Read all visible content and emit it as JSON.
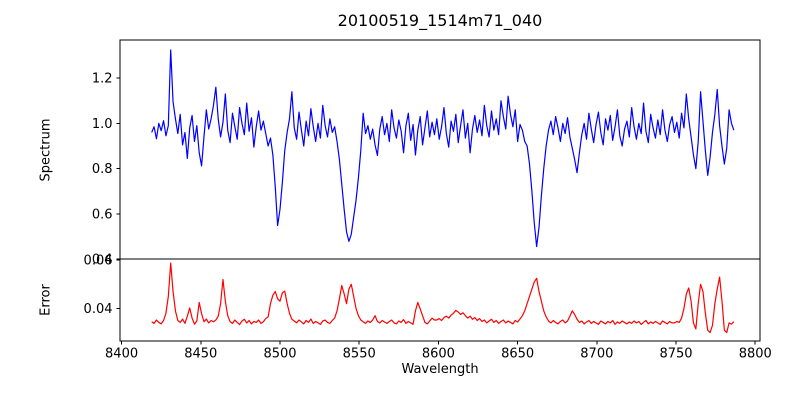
{
  "chart_data": {
    "type": "line",
    "title": "20100519_1514m71_040",
    "grid": false,
    "legend": null,
    "background": "#ffffff",
    "frame_color": "#000000",
    "text_color": "#000000",
    "x_axis": {
      "label": "Wavelength",
      "ticks": [
        8400,
        8450,
        8500,
        8550,
        8600,
        8650,
        8700,
        8750,
        8800
      ],
      "tick_labels": [
        "8400",
        "8450",
        "8500",
        "8550",
        "8600",
        "8650",
        "8700",
        "8750",
        "8800"
      ],
      "xlim": [
        8399,
        8803
      ]
    },
    "panels": [
      {
        "name": "spectrum",
        "ylabel": "Spectrum",
        "color": "#0000ff",
        "ylim": [
          0.4,
          1.369
        ],
        "yticks": [
          0.4,
          0.6,
          0.8,
          1.0,
          1.2
        ],
        "ytick_labels": [
          "0.4",
          "0.6",
          "0.8",
          "1.0",
          "1.2"
        ],
        "x_start": 8419,
        "x_step": 1.5,
        "values": [
          0.96,
          0.985,
          0.932,
          1.0,
          0.968,
          1.012,
          0.945,
          0.99,
          1.325,
          1.095,
          1.02,
          0.955,
          1.04,
          0.905,
          0.96,
          0.845,
          0.98,
          1.035,
          0.92,
          0.99,
          0.87,
          0.812,
          0.94,
          1.06,
          0.975,
          1.02,
          1.08,
          1.16,
          1.02,
          0.94,
          1.005,
          1.13,
          0.97,
          0.915,
          1.045,
          0.985,
          0.93,
          1.07,
          1.0,
          0.95,
          1.09,
          0.965,
          1.025,
          0.895,
          0.985,
          1.055,
          0.97,
          1.01,
          0.955,
          0.9,
          0.935,
          0.86,
          0.72,
          0.548,
          0.62,
          0.74,
          0.88,
          0.96,
          1.02,
          1.14,
          0.98,
          0.93,
          1.05,
          0.97,
          0.9,
          1.01,
          0.945,
          1.065,
          0.985,
          0.92,
          1.0,
          0.935,
          1.08,
          0.99,
          0.94,
          1.02,
          0.96,
          0.985,
          0.92,
          0.84,
          0.73,
          0.62,
          0.52,
          0.478,
          0.51,
          0.585,
          0.66,
          0.76,
          0.88,
          1.045,
          0.955,
          0.99,
          0.93,
          0.975,
          0.905,
          0.858,
          0.975,
          1.03,
          0.95,
          1.0,
          0.92,
          1.06,
          0.98,
          0.935,
          1.015,
          0.965,
          0.87,
          0.99,
          1.045,
          0.925,
          0.995,
          0.86,
          0.97,
          1.03,
          0.905,
          0.98,
          1.055,
          0.94,
          1.005,
          0.95,
          1.02,
          0.93,
          0.985,
          1.07,
          0.955,
          0.895,
          1.01,
          0.965,
          1.04,
          0.915,
          0.99,
          1.06,
          0.935,
          1.0,
          0.87,
          0.975,
          1.035,
          0.96,
          1.015,
          0.945,
          1.08,
          0.99,
          0.94,
          1.055,
          0.97,
          1.02,
          0.95,
          1.1,
          1.03,
          0.975,
          1.12,
          1.04,
          0.985,
          1.06,
          0.92,
          0.995,
          0.97,
          0.92,
          0.9,
          0.82,
          0.7,
          0.56,
          0.455,
          0.54,
          0.68,
          0.8,
          0.9,
          0.97,
          1.01,
          0.95,
          1.03,
          0.98,
          0.92,
          1.0,
          0.955,
          1.025,
          0.94,
          0.89,
          0.84,
          0.782,
          0.87,
          0.95,
          1.0,
          0.93,
          1.045,
          0.975,
          0.915,
          0.995,
          1.05,
          0.96,
          0.905,
          1.02,
          0.97,
          1.035,
          0.925,
          0.985,
          1.06,
          0.945,
          0.9,
          0.975,
          1.01,
          0.94,
          1.07,
          0.985,
          0.93,
          1.0,
          0.955,
          1.09,
          0.965,
          0.915,
          1.04,
          0.98,
          0.935,
          1.015,
          0.95,
          1.06,
          0.97,
          0.92,
          0.995,
          1.03,
          0.96,
          1.005,
          0.935,
          1.045,
          0.98,
          1.13,
          1.02,
          0.94,
          0.86,
          0.8,
          0.92,
          1.14,
          1.01,
          0.88,
          0.77,
          0.85,
          0.96,
          1.04,
          1.15,
          0.99,
          0.9,
          0.82,
          0.89,
          1.06,
          1.0,
          0.97
        ]
      },
      {
        "name": "error",
        "ylabel": "Error",
        "xlabel": "Wavelength",
        "color": "#ff0000",
        "ylim": [
          0.0265,
          0.0605
        ],
        "yticks": [
          0.04,
          0.06
        ],
        "ytick_labels": [
          "0.04",
          "0.06"
        ],
        "x_start": 8419,
        "x_step": 1.5,
        "values": [
          0.0345,
          0.0338,
          0.0352,
          0.0342,
          0.0336,
          0.035,
          0.038,
          0.045,
          0.0588,
          0.047,
          0.039,
          0.035,
          0.0342,
          0.0356,
          0.0338,
          0.0368,
          0.0402,
          0.036,
          0.0335,
          0.0348,
          0.0425,
          0.0378,
          0.0345,
          0.0356,
          0.034,
          0.035,
          0.0345,
          0.0352,
          0.0368,
          0.042,
          0.052,
          0.043,
          0.037,
          0.0345,
          0.0338,
          0.0352,
          0.0342,
          0.0333,
          0.0348,
          0.0355,
          0.034,
          0.035,
          0.0336,
          0.0346,
          0.0342,
          0.0352,
          0.0338,
          0.0345,
          0.0358,
          0.0365,
          0.042,
          0.0455,
          0.047,
          0.044,
          0.043,
          0.0465,
          0.0472,
          0.042,
          0.038,
          0.0355,
          0.0348,
          0.034,
          0.0352,
          0.0344,
          0.0336,
          0.035,
          0.0342,
          0.0356,
          0.0338,
          0.0346,
          0.034,
          0.0334,
          0.0348,
          0.0352,
          0.0342,
          0.0338,
          0.035,
          0.036,
          0.039,
          0.044,
          0.0495,
          0.046,
          0.042,
          0.048,
          0.05,
          0.045,
          0.04,
          0.037,
          0.0352,
          0.0345,
          0.0338,
          0.0348,
          0.0342,
          0.0352,
          0.037,
          0.0346,
          0.034,
          0.035,
          0.0344,
          0.0338,
          0.0346,
          0.0352,
          0.034,
          0.0336,
          0.0348,
          0.0342,
          0.0354,
          0.0338,
          0.0346,
          0.034,
          0.0334,
          0.039,
          0.0425,
          0.0398,
          0.037,
          0.0342,
          0.0336,
          0.0348,
          0.036,
          0.0352,
          0.0352,
          0.0358,
          0.035,
          0.0362,
          0.0368,
          0.036,
          0.0372,
          0.038,
          0.0392,
          0.0385,
          0.0375,
          0.0382,
          0.037,
          0.036,
          0.0368,
          0.0355,
          0.0362,
          0.035,
          0.0358,
          0.0346,
          0.0352,
          0.034,
          0.0348,
          0.0355,
          0.0342,
          0.035,
          0.0338,
          0.0346,
          0.0352,
          0.034,
          0.0348,
          0.0342,
          0.0336,
          0.035,
          0.0344,
          0.0356,
          0.037,
          0.039,
          0.042,
          0.045,
          0.048,
          0.051,
          0.0525,
          0.047,
          0.043,
          0.039,
          0.0365,
          0.0348,
          0.034,
          0.035,
          0.0342,
          0.0336,
          0.0346,
          0.0352,
          0.034,
          0.0348,
          0.0368,
          0.039,
          0.0375,
          0.0355,
          0.0342,
          0.0348,
          0.0336,
          0.0344,
          0.035,
          0.0338,
          0.0346,
          0.034,
          0.0334,
          0.0348,
          0.0342,
          0.0336,
          0.0346,
          0.034,
          0.035,
          0.0334,
          0.0344,
          0.0338,
          0.0348,
          0.0342,
          0.0336,
          0.0344,
          0.0338,
          0.0348,
          0.034,
          0.0346,
          0.0334,
          0.0342,
          0.035,
          0.0336,
          0.0344,
          0.0338,
          0.0346,
          0.034,
          0.0334,
          0.0348,
          0.0342,
          0.0336,
          0.0346,
          0.034,
          0.034,
          0.0346,
          0.0342,
          0.036,
          0.04,
          0.046,
          0.0485,
          0.043,
          0.034,
          0.0315,
          0.042,
          0.05,
          0.047,
          0.038,
          0.031,
          0.03,
          0.033,
          0.042,
          0.048,
          0.053,
          0.043,
          0.031,
          0.03,
          0.034,
          0.0335,
          0.0345
        ]
      }
    ]
  }
}
